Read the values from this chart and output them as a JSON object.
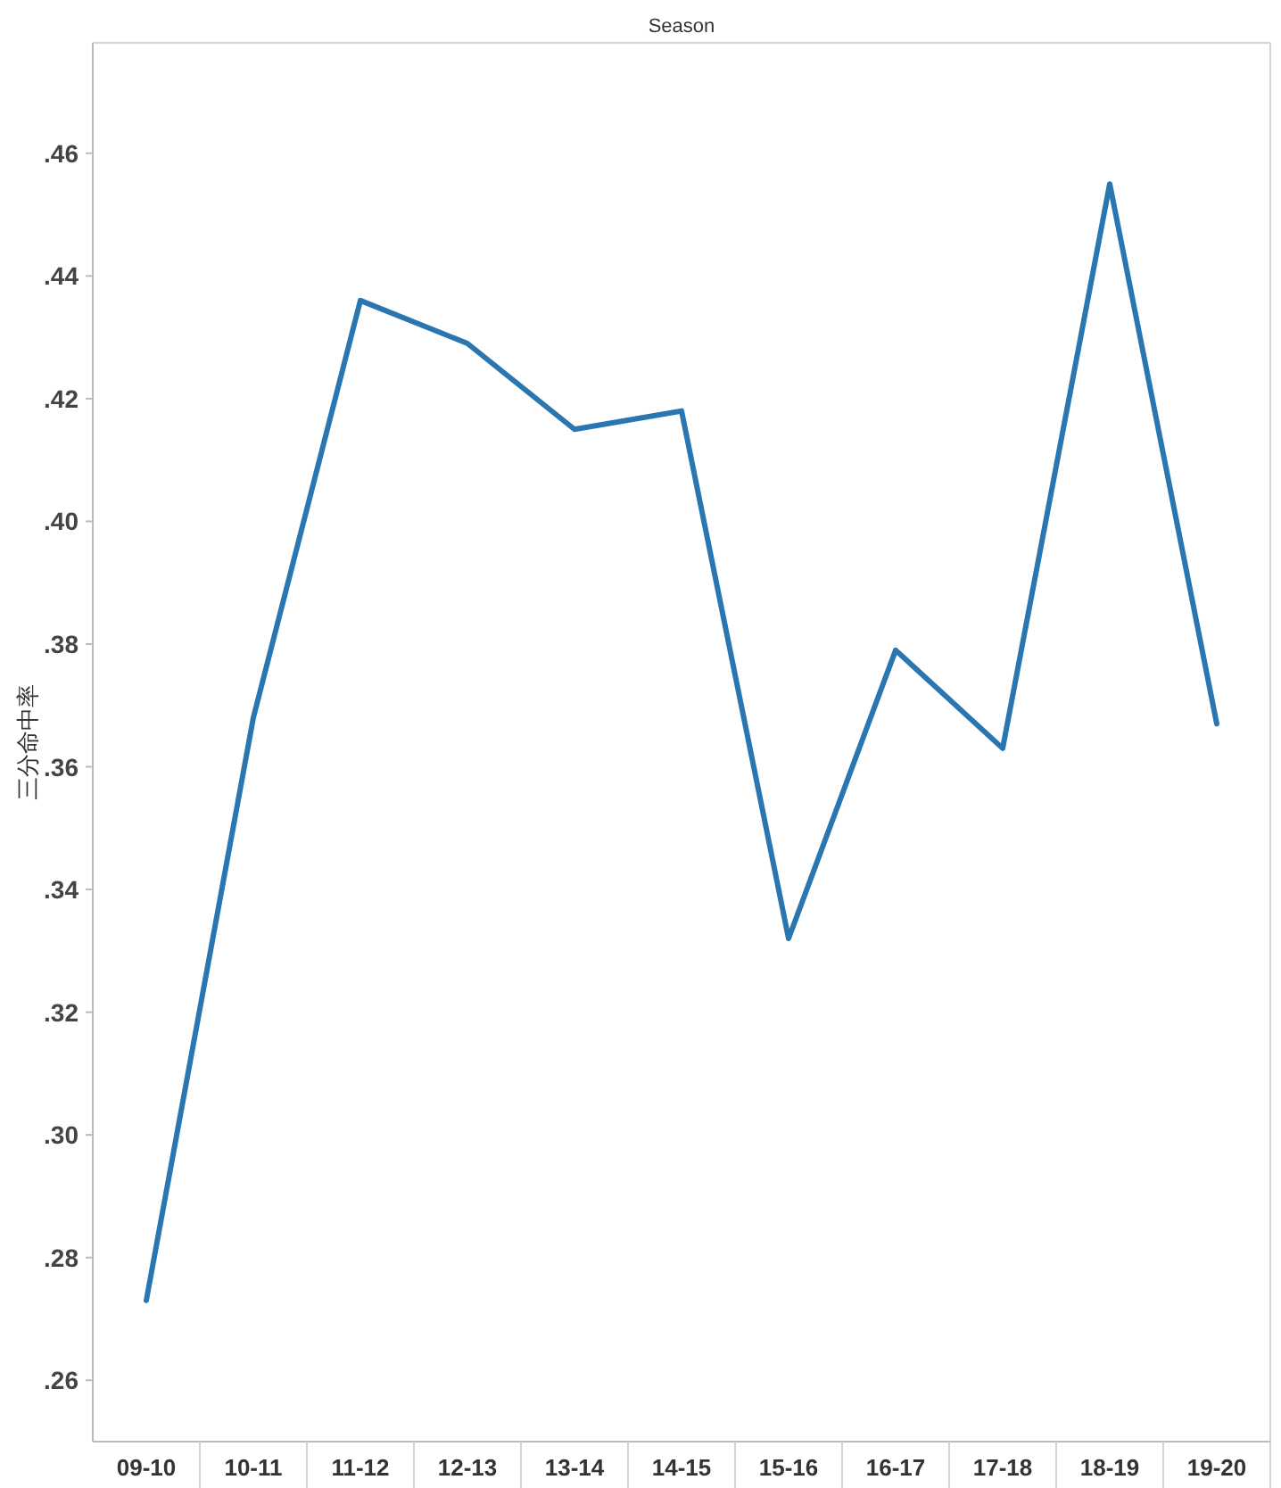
{
  "chart_data": {
    "type": "line",
    "xlabel": "Season",
    "ylabel": "三分命中率",
    "categories": [
      "09-10",
      "10-11",
      "11-12",
      "12-13",
      "13-14",
      "14-15",
      "15-16",
      "16-17",
      "17-18",
      "18-19",
      "19-20"
    ],
    "series": [
      {
        "color": "#2a76b0",
        "values": [
          0.273,
          0.368,
          0.436,
          0.429,
          0.415,
          0.418,
          0.332,
          0.379,
          0.363,
          0.455,
          0.367
        ]
      }
    ],
    "ylim": [
      0.25,
      0.478
    ],
    "yticks": [
      {
        "value": 0.26,
        "label": ".26"
      },
      {
        "value": 0.28,
        "label": ".28"
      },
      {
        "value": 0.3,
        "label": ".30"
      },
      {
        "value": 0.32,
        "label": ".32"
      },
      {
        "value": 0.34,
        "label": ".34"
      },
      {
        "value": 0.36,
        "label": ".36"
      },
      {
        "value": 0.38,
        "label": ".38"
      },
      {
        "value": 0.4,
        "label": ".40"
      },
      {
        "value": 0.42,
        "label": ".42"
      },
      {
        "value": 0.44,
        "label": ".44"
      },
      {
        "value": 0.46,
        "label": ".46"
      }
    ],
    "grid": false,
    "marker": "none",
    "line_style": "solid"
  }
}
